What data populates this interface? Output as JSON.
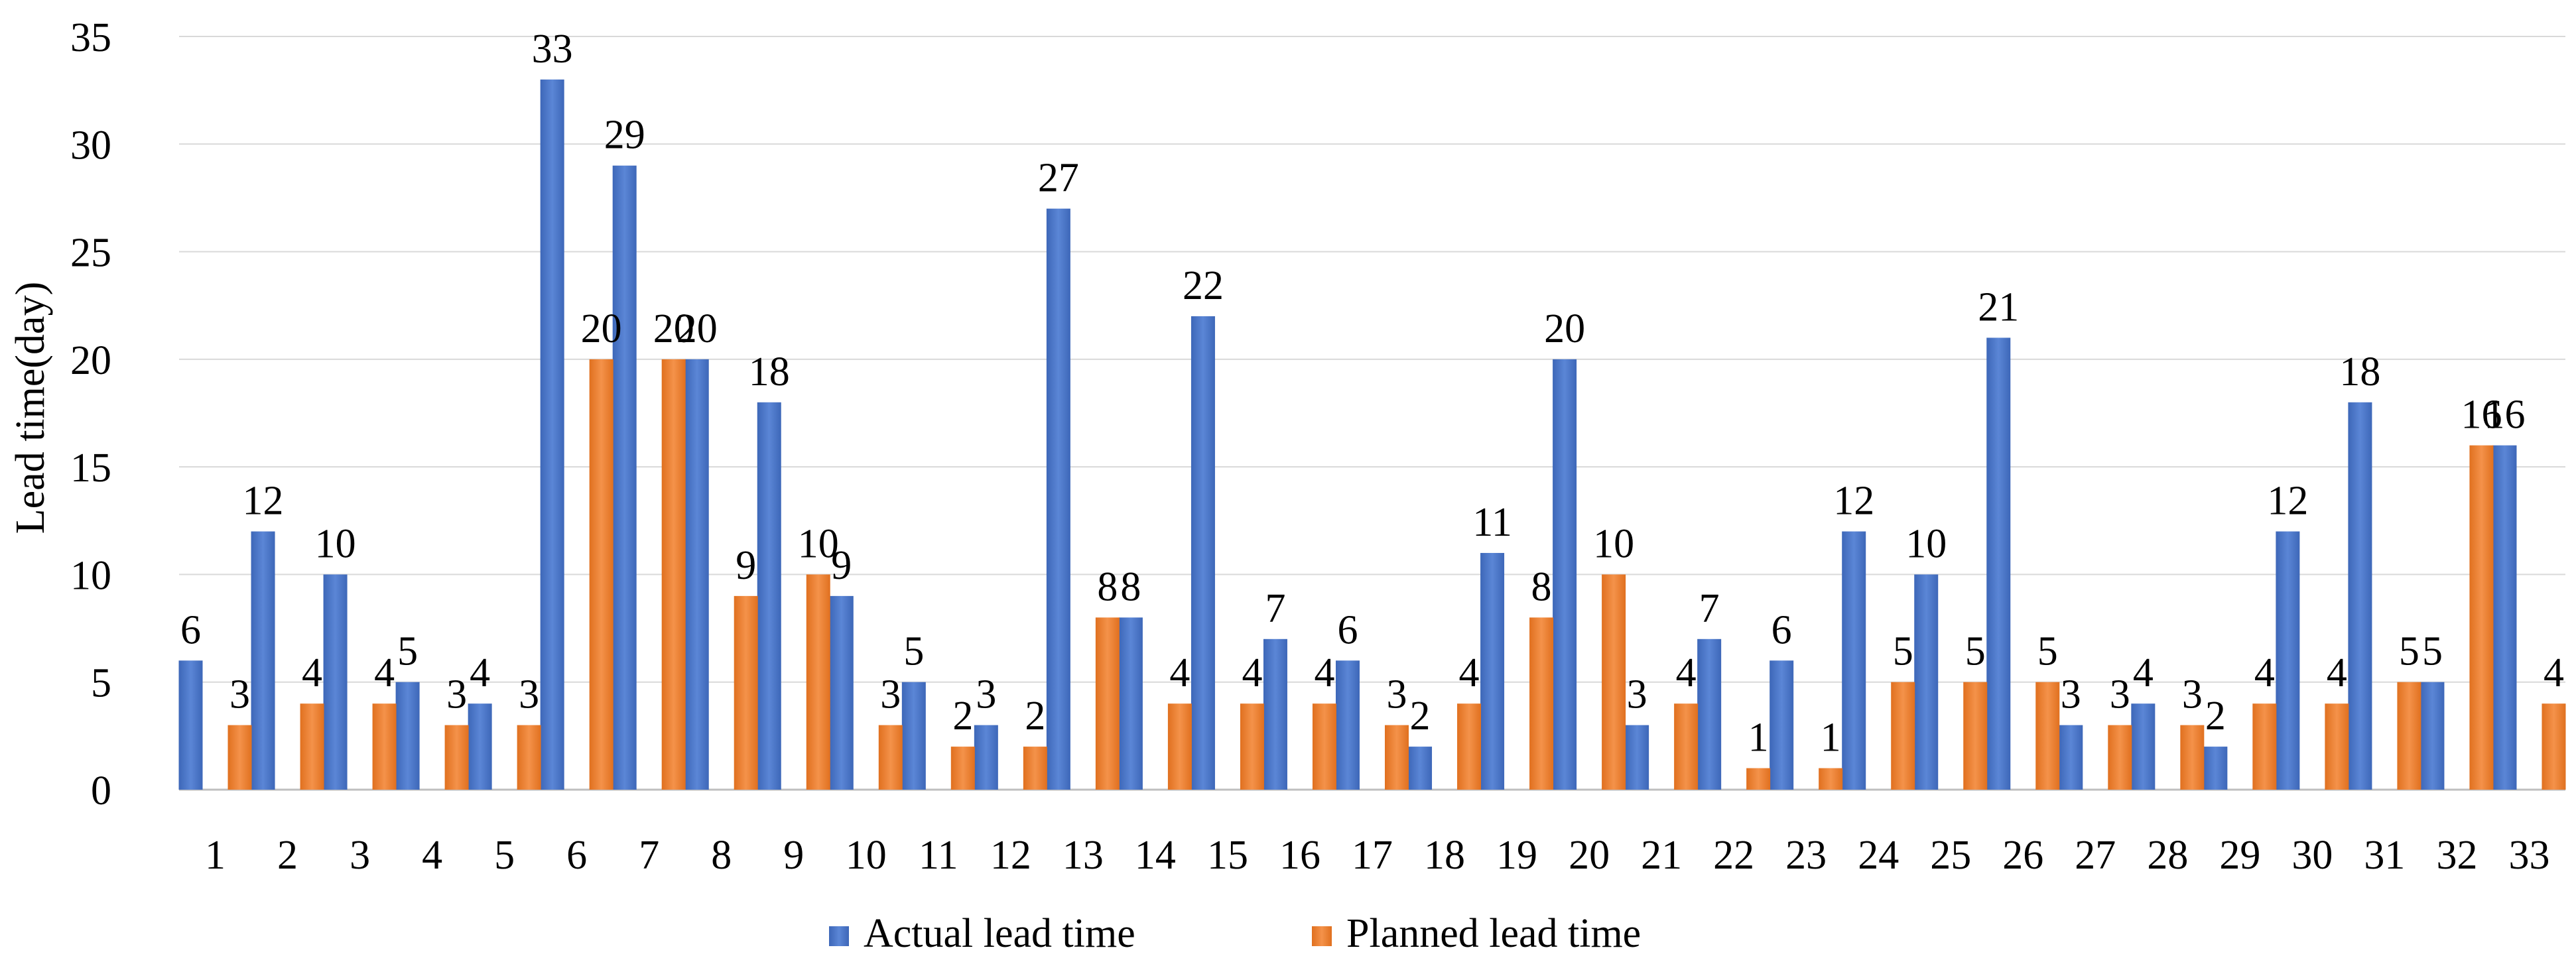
{
  "chart_data": {
    "type": "bar",
    "title": "",
    "xlabel": "",
    "ylabel": "Lead time(day)",
    "ylim": [
      0,
      35
    ],
    "yticks": [
      0,
      5,
      10,
      15,
      20,
      25,
      30,
      35
    ],
    "grid": true,
    "legend_position": "bottom-center",
    "categories": [
      "1",
      "2",
      "3",
      "4",
      "5",
      "6",
      "7",
      "8",
      "9",
      "10",
      "11",
      "12",
      "13",
      "14",
      "15",
      "16",
      "17",
      "18",
      "19",
      "20",
      "21",
      "22",
      "23",
      "24",
      "25",
      "26",
      "27",
      "28",
      "29",
      "30",
      "31",
      "32",
      "33"
    ],
    "series": [
      {
        "name": "Actual lead time",
        "color": "#4472C4",
        "values": [
          6,
          12,
          10,
          5,
          4,
          33,
          29,
          20,
          18,
          9,
          5,
          3,
          27,
          8,
          22,
          7,
          6,
          2,
          11,
          20,
          3,
          7,
          6,
          12,
          10,
          21,
          3,
          4,
          2,
          12,
          18,
          5,
          16
        ]
      },
      {
        "name": "Planned lead time",
        "color": "#ED7D31",
        "values": [
          3,
          4,
          4,
          3,
          3,
          20,
          20,
          9,
          10,
          3,
          2,
          2,
          8,
          4,
          4,
          4,
          3,
          4,
          8,
          10,
          4,
          1,
          1,
          5,
          5,
          5,
          3,
          3,
          4,
          4,
          5,
          16,
          4
        ]
      }
    ]
  }
}
